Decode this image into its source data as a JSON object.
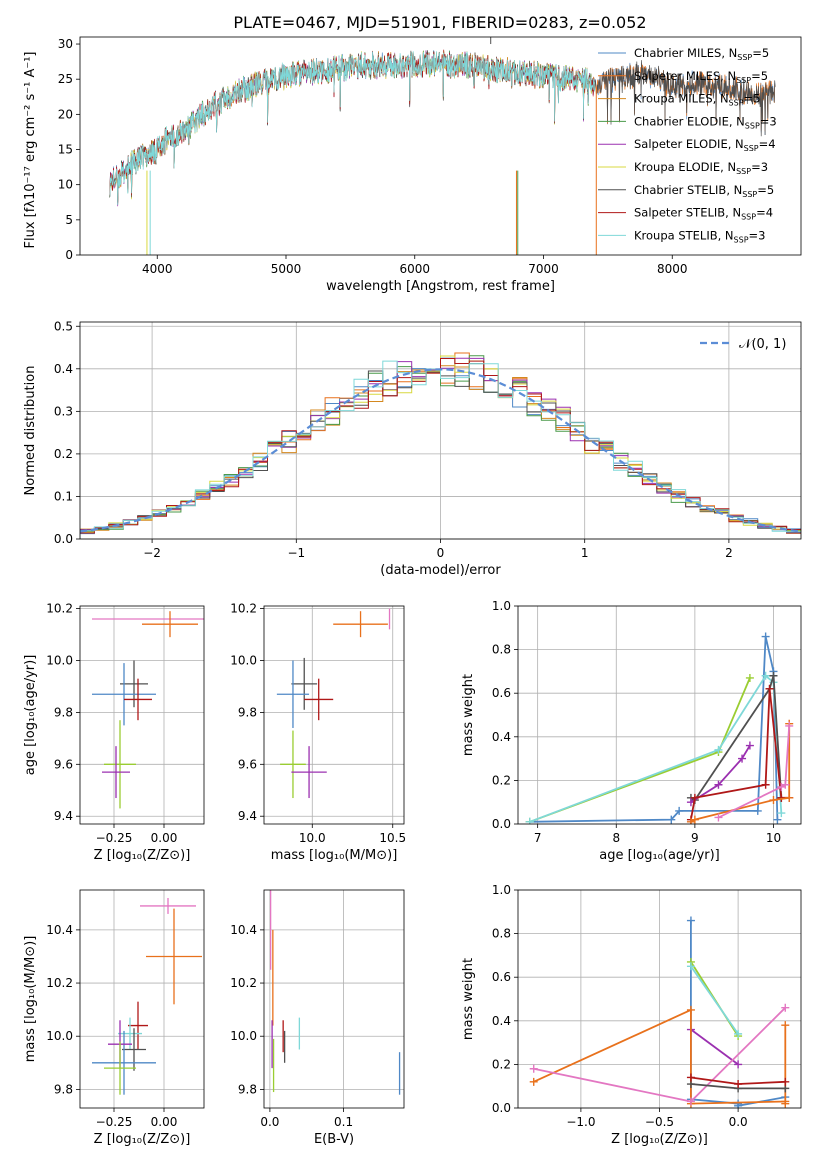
{
  "page_title": "PLATE=0467, MJD=51901, FIBERID=0283, z=0.052",
  "colors": {
    "chabrier_miles": "#4f88c6",
    "salpeter_miles": "#e8711c",
    "kroupa_miles": "#d4881f",
    "chabrier_elodie": "#4a9a4a",
    "salpeter_elodie": "#9b30b0",
    "kroupa_elodie": "#d8d840",
    "chabrier_stelib": "#505050",
    "salpeter_stelib": "#b01818",
    "kroupa_stelib": "#7fd8d8",
    "gauss": "#5b8dd6",
    "pink": "#e377c2",
    "lime": "#9acd32"
  },
  "chart_data": [
    {
      "id": "spectrum",
      "type": "line",
      "xlabel": "wavelength [Angstrom, rest frame]",
      "ylabel": "Flux [fλ10⁻¹⁷ erg cm⁻² s⁻¹ A⁻¹]",
      "xlim": [
        3400,
        9000
      ],
      "ylim": [
        0,
        31
      ],
      "xticks": [
        4000,
        5000,
        6000,
        7000,
        8000
      ],
      "yticks": [
        0,
        5,
        10,
        15,
        20,
        25,
        30
      ],
      "continuum": {
        "x": [
          3600,
          3700,
          3800,
          3900,
          4000,
          4100,
          4200,
          4300,
          4400,
          4600,
          4800,
          5000,
          5200,
          5400,
          5600,
          5800,
          6000,
          6200,
          6400,
          6600,
          6800,
          7000,
          7200,
          7400,
          7600,
          7800,
          8000,
          8200,
          8400,
          8600,
          8800
        ],
        "y": [
          10,
          11,
          13,
          14,
          15,
          17,
          17.5,
          19,
          21,
          23,
          24.5,
          25.5,
          26,
          26.5,
          27,
          27,
          27.2,
          27.2,
          27,
          26.5,
          26,
          25.5,
          25,
          24.5,
          25,
          26,
          24,
          24.5,
          24,
          23,
          23
        ]
      },
      "series": [
        {
          "name": "Chabrier MILES",
          "nssp": "5",
          "color_key": "chabrier_miles"
        },
        {
          "name": "Salpeter MILES",
          "nssp": "5",
          "color_key": "salpeter_miles"
        },
        {
          "name": "Kroupa MILES",
          "nssp": "5",
          "color_key": "kroupa_miles"
        },
        {
          "name": "Chabrier ELODIE",
          "nssp": "3",
          "color_key": "chabrier_elodie"
        },
        {
          "name": "Salpeter ELODIE",
          "nssp": "4",
          "color_key": "salpeter_elodie"
        },
        {
          "name": "Kroupa ELODIE",
          "nssp": "3",
          "color_key": "kroupa_elodie"
        },
        {
          "name": "Chabrier STELIB",
          "nssp": "5",
          "color_key": "chabrier_stelib"
        },
        {
          "name": "Salpeter STELIB",
          "nssp": "4",
          "color_key": "salpeter_stelib"
        },
        {
          "name": "Kroupa STELIB",
          "nssp": "3",
          "color_key": "kroupa_stelib"
        }
      ],
      "legend_prefix": "N",
      "legend_sub": "SSP",
      "legend_placement": "upper right"
    },
    {
      "id": "residuals",
      "type": "histogram",
      "xlabel": "(data-model)/error",
      "ylabel": "Normed distribution",
      "xlim": [
        -2.5,
        2.5
      ],
      "ylim": [
        0,
        0.51
      ],
      "xticks": [
        -2,
        -1,
        0,
        1,
        2
      ],
      "xticklabels": [
        "−2",
        "−1",
        "0",
        "1",
        "2"
      ],
      "yticks": [
        0.0,
        0.1,
        0.2,
        0.3,
        0.4,
        0.5
      ],
      "yticklabels": [
        "0.0",
        "0.1",
        "0.2",
        "0.3",
        "0.4",
        "0.5"
      ],
      "bin_width": 0.1,
      "gauss_label": "𝒩(0, 1)",
      "legend_placement": "upper right"
    },
    {
      "id": "age_vs_Z",
      "type": "errorbar",
      "xlabel": "Z [log₁₀(Z/Z⊙)]",
      "ylabel": "age  [log₁₀(age/yr)]",
      "xlim": [
        -0.42,
        0.2
      ],
      "ylim": [
        9.37,
        10.21
      ],
      "xticks": [
        -0.25,
        0.0
      ],
      "xticklabels": [
        "−0.25",
        "0.00"
      ],
      "yticks": [
        9.4,
        9.6,
        9.8,
        10.0,
        10.2
      ],
      "yticklabels": [
        "9.4",
        "9.6",
        "9.8",
        "10.0",
        "10.2"
      ],
      "points": [
        {
          "color_key": "pink",
          "x": -0.07,
          "xerr": 0.29,
          "y": 10.16,
          "yerr": 0.0
        },
        {
          "color_key": "salpeter_miles",
          "x": 0.03,
          "xerr": 0.14,
          "y": 10.14,
          "yerr": 0.05
        },
        {
          "color_key": "chabrier_stelib",
          "x": -0.15,
          "xerr": 0.07,
          "y": 9.91,
          "yerr": 0.09
        },
        {
          "color_key": "chabrier_miles",
          "x": -0.2,
          "xerr": 0.16,
          "y": 9.87,
          "yerr": 0.12
        },
        {
          "color_key": "salpeter_stelib",
          "x": -0.13,
          "xerr": 0.07,
          "y": 9.85,
          "yerr": 0.08
        },
        {
          "color_key": "lime",
          "x": -0.22,
          "xerr": 0.08,
          "y": 9.6,
          "yerr": 0.17
        },
        {
          "color_key": "salpeter_elodie",
          "x": -0.24,
          "xerr": 0.07,
          "y": 9.57,
          "yerr": 0.1
        }
      ]
    },
    {
      "id": "age_vs_mass",
      "type": "errorbar",
      "xlabel": "mass [log₁₀(M/M⊙)]",
      "ylabel": "",
      "xlim": [
        9.7,
        10.57
      ],
      "ylim": [
        9.37,
        10.21
      ],
      "xticks": [
        10.0,
        10.5
      ],
      "xticklabels": [
        "10.0",
        "10.5"
      ],
      "yticks": [
        9.4,
        9.6,
        9.8,
        10.0,
        10.2
      ],
      "yticklabels": [
        "9.4",
        "9.6",
        "9.8",
        "10.0",
        "10.2"
      ],
      "points": [
        {
          "color_key": "salpeter_miles",
          "x": 10.3,
          "xerr": 0.17,
          "y": 10.14,
          "yerr": 0.05
        },
        {
          "color_key": "pink",
          "x": 10.48,
          "xerr": 0.0,
          "y": 10.16,
          "yerr": 0.04
        },
        {
          "color_key": "chabrier_stelib",
          "x": 9.95,
          "xerr": 0.08,
          "y": 9.91,
          "yerr": 0.1
        },
        {
          "color_key": "chabrier_miles",
          "x": 9.88,
          "xerr": 0.1,
          "y": 9.87,
          "yerr": 0.13
        },
        {
          "color_key": "salpeter_stelib",
          "x": 10.04,
          "xerr": 0.09,
          "y": 9.85,
          "yerr": 0.08
        },
        {
          "color_key": "lime",
          "x": 9.88,
          "xerr": 0.08,
          "y": 9.6,
          "yerr": 0.13
        },
        {
          "color_key": "salpeter_elodie",
          "x": 9.98,
          "xerr": 0.11,
          "y": 9.57,
          "yerr": 0.1
        }
      ]
    },
    {
      "id": "massweight_vs_age",
      "type": "line",
      "xlabel": "age  [log₁₀(age/yr)]",
      "ylabel": "mass weight",
      "xlim": [
        6.75,
        10.35
      ],
      "ylim": [
        0,
        1.0
      ],
      "xticks": [
        7,
        8,
        9,
        10
      ],
      "xticklabels": [
        "7",
        "8",
        "9",
        "10"
      ],
      "yticks": [
        0.0,
        0.2,
        0.4,
        0.6,
        0.8,
        1.0
      ],
      "yticklabels": [
        "0.0",
        "0.2",
        "0.4",
        "0.6",
        "0.8",
        "1.0"
      ],
      "series": [
        {
          "color_key": "chabrier_miles",
          "x": [
            6.9,
            8.7,
            8.8,
            9.8,
            9.9,
            10.0,
            10.05
          ],
          "y": [
            0.01,
            0.02,
            0.06,
            0.06,
            0.86,
            0.7,
            0.02
          ]
        },
        {
          "color_key": "lime",
          "x": [
            6.9,
            9.3,
            9.7
          ],
          "y": [
            0.01,
            0.33,
            0.67
          ]
        },
        {
          "color_key": "kroupa_stelib",
          "x": [
            6.9,
            9.3,
            9.9,
            10.0,
            10.1
          ],
          "y": [
            0.01,
            0.34,
            0.68,
            0.65,
            0.05
          ]
        },
        {
          "color_key": "chabrier_stelib",
          "x": [
            8.95,
            9.0,
            9.95,
            10.0,
            10.1
          ],
          "y": [
            0.12,
            0.11,
            0.62,
            0.68,
            0.12
          ]
        },
        {
          "color_key": "salpeter_elodie",
          "x": [
            8.95,
            9.3,
            9.6,
            9.7
          ],
          "y": [
            0.1,
            0.18,
            0.3,
            0.36
          ]
        },
        {
          "color_key": "salpeter_stelib",
          "x": [
            8.95,
            9.0,
            9.9,
            9.95,
            10.1,
            10.2
          ],
          "y": [
            0.02,
            0.12,
            0.18,
            0.62,
            0.12,
            0.12
          ]
        },
        {
          "color_key": "salpeter_miles",
          "x": [
            8.95,
            9.0,
            10.0,
            10.2,
            10.2
          ],
          "y": [
            0.01,
            0.02,
            0.11,
            0.12,
            0.46
          ]
        },
        {
          "color_key": "pink",
          "x": [
            9.3,
            10.1,
            10.15,
            10.2
          ],
          "y": [
            0.03,
            0.17,
            0.18,
            0.45
          ]
        }
      ]
    },
    {
      "id": "mass_vs_Z",
      "type": "errorbar",
      "xlabel": "Z [log₁₀(Z/Z⊙)]",
      "ylabel": "mass [log₁₀(M/M⊙)]",
      "xlim": [
        -0.42,
        0.2
      ],
      "ylim": [
        9.73,
        10.55
      ],
      "xticks": [
        -0.25,
        0.0
      ],
      "xticklabels": [
        "−0.25",
        "0.00"
      ],
      "yticks": [
        9.8,
        10.0,
        10.2,
        10.4
      ],
      "yticklabels": [
        "9.8",
        "10.0",
        "10.2",
        "10.4"
      ],
      "points": [
        {
          "color_key": "pink",
          "x": 0.02,
          "xerr": 0.14,
          "y": 10.49,
          "yerr": 0.03
        },
        {
          "color_key": "salpeter_miles",
          "x": 0.05,
          "xerr": 0.14,
          "y": 10.3,
          "yerr": 0.18
        },
        {
          "color_key": "salpeter_stelib",
          "x": -0.13,
          "xerr": 0.05,
          "y": 10.04,
          "yerr": 0.09
        },
        {
          "color_key": "kroupa_stelib",
          "x": -0.17,
          "xerr": 0.06,
          "y": 10.01,
          "yerr": 0.06
        },
        {
          "color_key": "chabrier_stelib",
          "x": -0.15,
          "xerr": 0.06,
          "y": 9.95,
          "yerr": 0.08
        },
        {
          "color_key": "chabrier_miles",
          "x": -0.2,
          "xerr": 0.16,
          "y": 9.9,
          "yerr": 0.12
        },
        {
          "color_key": "salpeter_elodie",
          "x": -0.22,
          "xerr": 0.06,
          "y": 9.97,
          "yerr": 0.09
        },
        {
          "color_key": "lime",
          "x": -0.22,
          "xerr": 0.08,
          "y": 9.88,
          "yerr": 0.1
        }
      ]
    },
    {
      "id": "mass_vs_ebv",
      "type": "errorbar",
      "xlabel": "E(B-V)",
      "ylabel": "",
      "xlim": [
        -0.008,
        0.182
      ],
      "ylim": [
        9.73,
        10.55
      ],
      "xticks": [
        0.0,
        0.1
      ],
      "xticklabels": [
        "0.0",
        "0.1"
      ],
      "yticks": [
        9.8,
        10.0,
        10.2,
        10.4
      ],
      "yticklabels": [
        "9.8",
        "10.0",
        "10.2",
        "10.4"
      ],
      "points": [
        {
          "color_key": "pink",
          "x": 0.001,
          "xerr": 0.0,
          "y": 10.4,
          "yerr": 0.15
        },
        {
          "color_key": "salpeter_miles",
          "x": 0.004,
          "xerr": 0.0,
          "y": 10.22,
          "yerr": 0.18
        },
        {
          "color_key": "salpeter_elodie",
          "x": 0.003,
          "xerr": 0.0,
          "y": 9.97,
          "yerr": 0.09
        },
        {
          "color_key": "lime",
          "x": 0.005,
          "xerr": 0.0,
          "y": 9.89,
          "yerr": 0.1
        },
        {
          "color_key": "salpeter_stelib",
          "x": 0.018,
          "xerr": 0.0,
          "y": 10.0,
          "yerr": 0.06
        },
        {
          "color_key": "chabrier_stelib",
          "x": 0.02,
          "xerr": 0.0,
          "y": 9.96,
          "yerr": 0.06
        },
        {
          "color_key": "kroupa_stelib",
          "x": 0.04,
          "xerr": 0.0,
          "y": 10.01,
          "yerr": 0.06
        },
        {
          "color_key": "chabrier_miles",
          "x": 0.176,
          "xerr": 0.0,
          "y": 9.86,
          "yerr": 0.08
        }
      ]
    },
    {
      "id": "massweight_vs_Z",
      "type": "line",
      "xlabel": "Z [log₁₀(Z/Z⊙)]",
      "ylabel": "mass weight",
      "xlim": [
        -1.4,
        0.4
      ],
      "ylim": [
        0,
        1.0
      ],
      "xticks": [
        -1.0,
        -0.5,
        0.0
      ],
      "xticklabels": [
        "−1.0",
        "−0.5",
        "0.0"
      ],
      "yticks": [
        0.0,
        0.2,
        0.4,
        0.6,
        0.8,
        1.0
      ],
      "yticklabels": [
        "0.0",
        "0.2",
        "0.4",
        "0.6",
        "0.8",
        "1.0"
      ],
      "series": [
        {
          "color_key": "chabrier_miles",
          "x": [
            -0.3,
            -0.3,
            0.0,
            0.0,
            0.3
          ],
          "y": [
            0.86,
            0.04,
            0.02,
            0.01,
            0.05
          ]
        },
        {
          "color_key": "lime",
          "x": [
            -0.3,
            0.0
          ],
          "y": [
            0.67,
            0.33
          ]
        },
        {
          "color_key": "kroupa_stelib",
          "x": [
            -0.3,
            0.0
          ],
          "y": [
            0.65,
            0.34
          ]
        },
        {
          "color_key": "salpeter_elodie",
          "x": [
            -0.3,
            0.0
          ],
          "y": [
            0.36,
            0.2
          ]
        },
        {
          "color_key": "salpeter_miles",
          "x": [
            -1.3,
            -0.3,
            -0.3,
            0.3,
            0.3,
            0.3
          ],
          "y": [
            0.12,
            0.45,
            0.02,
            0.03,
            0.38,
            0.02
          ]
        },
        {
          "color_key": "pink",
          "x": [
            -1.3,
            -0.3,
            0.3
          ],
          "y": [
            0.18,
            0.03,
            0.46
          ]
        },
        {
          "color_key": "chabrier_stelib",
          "x": [
            -0.3,
            0.0,
            0.3
          ],
          "y": [
            0.11,
            0.09,
            0.09
          ]
        },
        {
          "color_key": "salpeter_stelib",
          "x": [
            -0.3,
            0.0,
            0.3
          ],
          "y": [
            0.14,
            0.11,
            0.12
          ]
        }
      ]
    }
  ]
}
